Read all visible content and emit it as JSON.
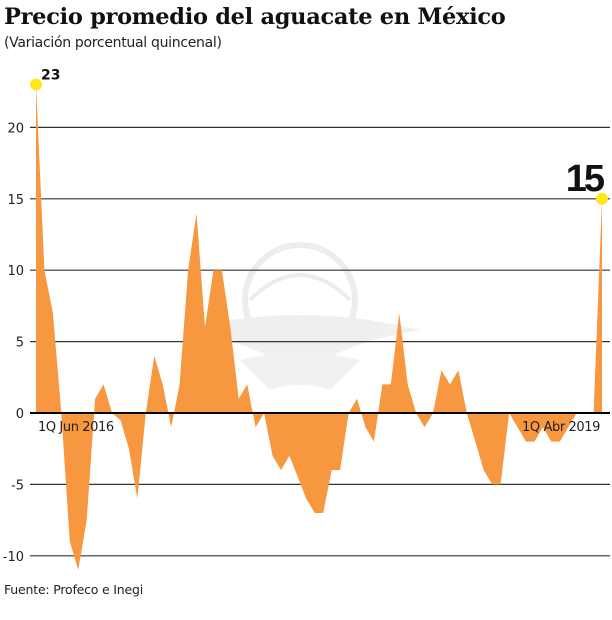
{
  "header": {
    "title": "Precio promedio del aguacate en México",
    "subtitle": "(Variación porcentual quincenal)"
  },
  "footer": {
    "source": "Fuente: Profeco e Inegi"
  },
  "colors": {
    "area": "#F7973F",
    "highlight": "#FFE81A",
    "grid": "#333333",
    "zero_line": "#000000"
  },
  "chart_data": {
    "type": "area",
    "title": "Precio promedio del aguacate en México",
    "subtitle": "(Variación porcentual quincenal)",
    "xlabel": "",
    "ylabel": "",
    "ylim": [
      -11,
      23
    ],
    "yticks": [
      20,
      15,
      10,
      5,
      0,
      -5,
      -10
    ],
    "grid": true,
    "x_labels": [
      {
        "index": 3,
        "label": "1Q Jun 2016"
      },
      {
        "index": 66,
        "label": "1Q Abr 2019"
      }
    ],
    "annotations": [
      {
        "index": 0,
        "value": 23,
        "label": "23"
      },
      {
        "index": 67,
        "value": 15,
        "label": "15"
      }
    ],
    "series": [
      {
        "name": "Variación porcentual quincenal",
        "values": [
          23,
          10,
          7,
          0,
          -9,
          -11,
          -7.5,
          1,
          2,
          0,
          -0.5,
          -2.5,
          -6,
          0,
          4,
          2,
          -1,
          2,
          10,
          14,
          6,
          10,
          10,
          6,
          1,
          2,
          -1,
          0,
          -3,
          -4,
          -3,
          -4.5,
          -6,
          -7,
          -7,
          -4,
          -4,
          0,
          1,
          -1,
          -2,
          2,
          2,
          7,
          2,
          0,
          -1,
          0,
          3,
          2,
          3,
          0,
          -2,
          -4,
          -5,
          -5,
          0,
          -1,
          -2,
          -2,
          -1,
          -2,
          -2,
          -1,
          0,
          0,
          0,
          15
        ]
      }
    ],
    "source": "Fuente: Profeco e Inegi"
  }
}
